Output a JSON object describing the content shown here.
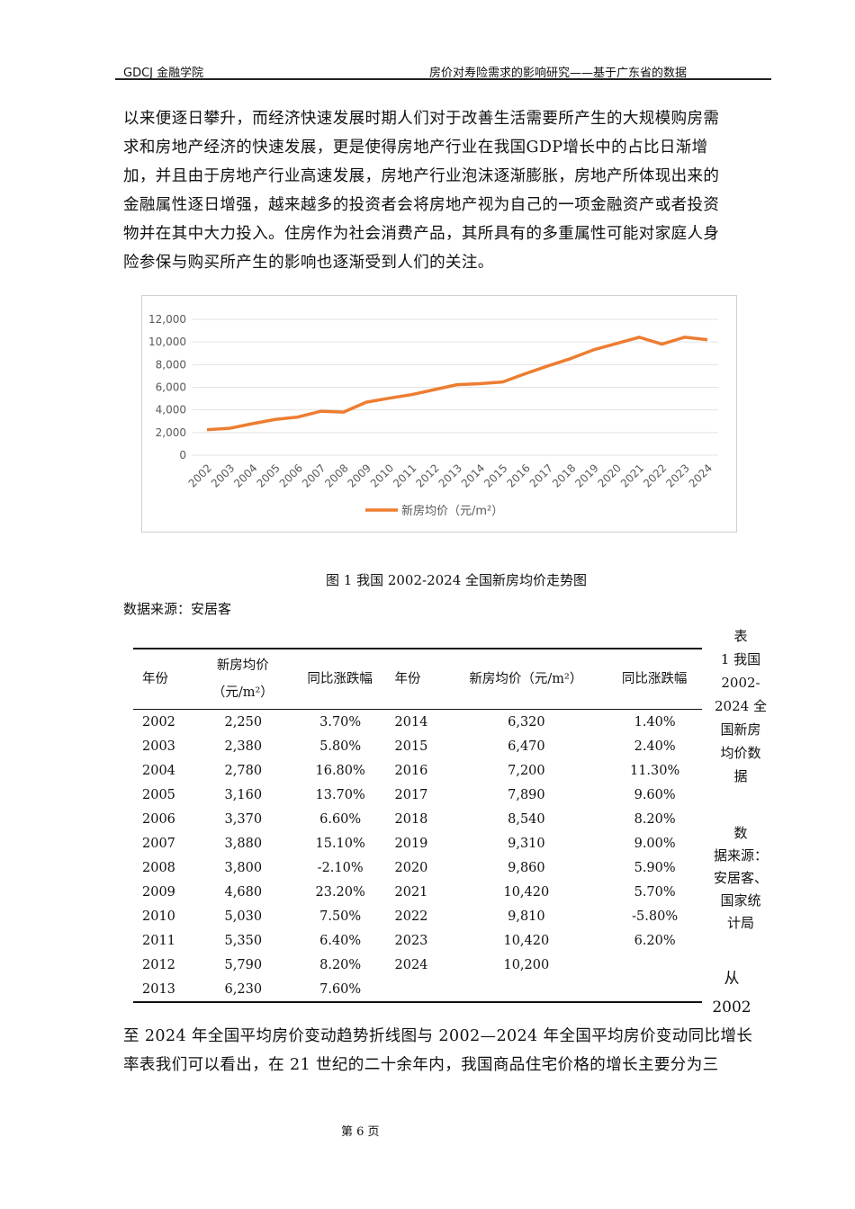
{
  "header": {
    "left": "GDCJ 金融学院",
    "right": "房价对寿险需求的影响研究——基于广东省的数据"
  },
  "paragraph1": [
    "以来便逐日攀升，而经济快速发展时期人们对于改善生活需要所产生的大规模购房需",
    "求和房地产经济的快速发展，更是使得房地产行业在我国GDP增长中的占比日渐增",
    "加，并且由于房地产行业高速发展，房地产行业泡沫逐渐膨胀，房地产所体现出来的",
    "金融属性逐日增强，越来越多的投资者会将房地产视为自己的一项金融资产或者投资",
    "物并在其中大力投入。住房作为社会消费产品，其所具有的多重属性可能对家庭人身",
    "险参保与购买所产生的影响也逐渐受到人们的关注。"
  ],
  "chart_data": {
    "type": "line",
    "categories": [
      "2002",
      "2003",
      "2004",
      "2005",
      "2006",
      "2007",
      "2008",
      "2009",
      "2010",
      "2011",
      "2012",
      "2013",
      "2014",
      "2015",
      "2016",
      "2017",
      "2018",
      "2019",
      "2020",
      "2021",
      "2022",
      "2023",
      "2024"
    ],
    "series": [
      {
        "name": "新房均价（元/m²）",
        "values": [
          2250,
          2380,
          2780,
          3160,
          3370,
          3880,
          3800,
          4680,
          5030,
          5350,
          5790,
          6230,
          6320,
          6470,
          7200,
          7890,
          8540,
          9310,
          9860,
          10420,
          9810,
          10420,
          10200
        ],
        "color": "#ed7d31"
      }
    ],
    "yticks": [
      "0",
      "2,000",
      "4,000",
      "6,000",
      "8,000",
      "10,000",
      "12,000"
    ],
    "ylim": [
      0,
      12000
    ],
    "grid": true,
    "legend": "bottom"
  },
  "figure_caption": "图 1 我国 2002-2024 全国新房均价走势图",
  "figure_source": "数据来源：安居客",
  "table": {
    "headers": [
      "年份",
      "新房均价（元/m²）",
      "同比涨跌幅",
      "年份",
      "新房均价（元/m²）",
      "同比涨跌幅"
    ],
    "rows": [
      [
        "2002",
        "2,250",
        "3.70%",
        "2014",
        "6,320",
        "1.40%"
      ],
      [
        "2003",
        "2,380",
        "5.80%",
        "2015",
        "6,470",
        "2.40%"
      ],
      [
        "2004",
        "2,780",
        "16.80%",
        "2016",
        "7,200",
        "11.30%"
      ],
      [
        "2005",
        "3,160",
        "13.70%",
        "2017",
        "7,890",
        "9.60%"
      ],
      [
        "2006",
        "3,370",
        "6.60%",
        "2018",
        "8,540",
        "8.20%"
      ],
      [
        "2007",
        "3,880",
        "15.10%",
        "2019",
        "9,310",
        "9.00%"
      ],
      [
        "2008",
        "3,800",
        "-2.10%",
        "2020",
        "9,860",
        "5.90%"
      ],
      [
        "2009",
        "4,680",
        "23.20%",
        "2021",
        "10,420",
        "5.70%"
      ],
      [
        "2010",
        "5,030",
        "7.50%",
        "2022",
        "9,810",
        "-5.80%"
      ],
      [
        "2011",
        "5,350",
        "6.40%",
        "2023",
        "10,420",
        "6.20%"
      ],
      [
        "2012",
        "5,790",
        "8.20%",
        "2024",
        "10,200",
        ""
      ],
      [
        "2013",
        "6,230",
        "7.60%",
        "",
        "",
        ""
      ]
    ]
  },
  "side_caption": [
    "表",
    "1 我国",
    "2002-",
    "2024 全",
    "国新房",
    "均价数",
    "据"
  ],
  "side_source": [
    "数",
    "据来源：",
    "安居客、",
    "国家统",
    "计局"
  ],
  "side_para": [
    "从",
    "2002"
  ],
  "paragraph2": [
    "至 2024 年全国平均房价变动趋势折线图与 2002—2024 年全国平均房价变动同比增长",
    "率表我们可以看出，在 21 世纪的二十余年内，我国商品住宅价格的增长主要分为三"
  ],
  "footer": "第 6 页"
}
